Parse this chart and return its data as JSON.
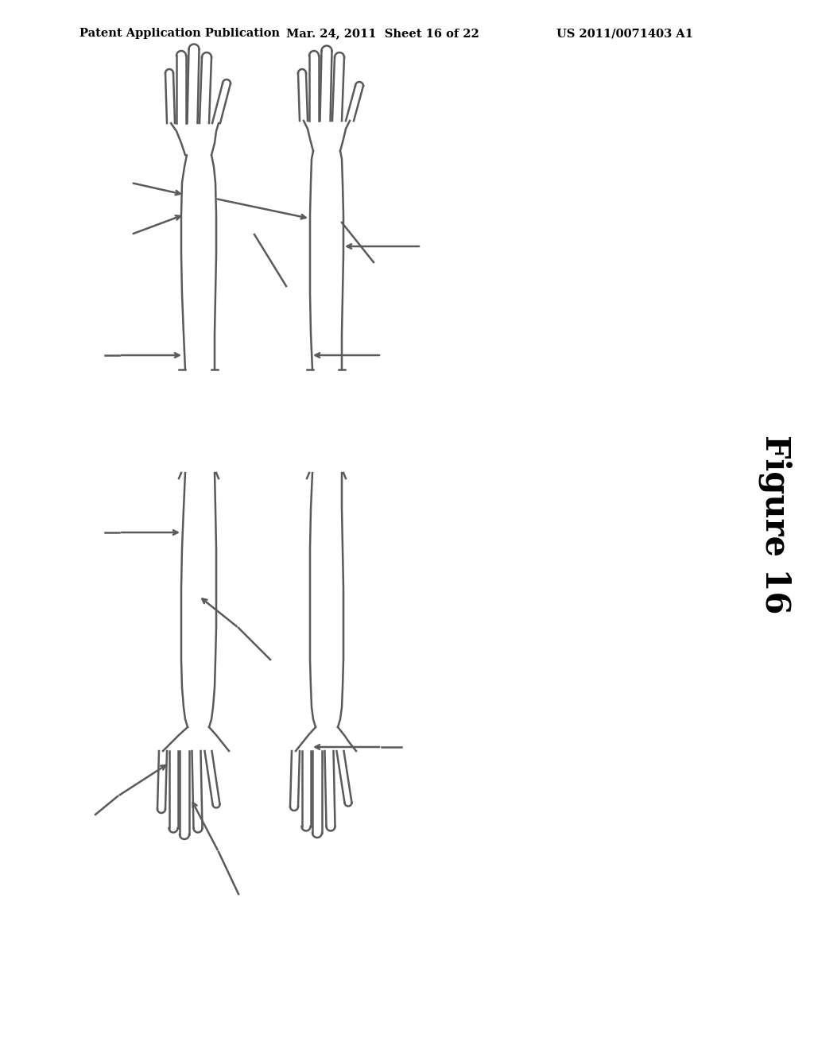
{
  "background_color": "#ffffff",
  "header_left": "Patent Application Publication",
  "header_mid": "Mar. 24, 2011  Sheet 16 of 22",
  "header_right": "US 2011/0071403 A1",
  "figure_label": "Figure 16",
  "line_color": "#5a5a5a",
  "line_width": 1.8
}
